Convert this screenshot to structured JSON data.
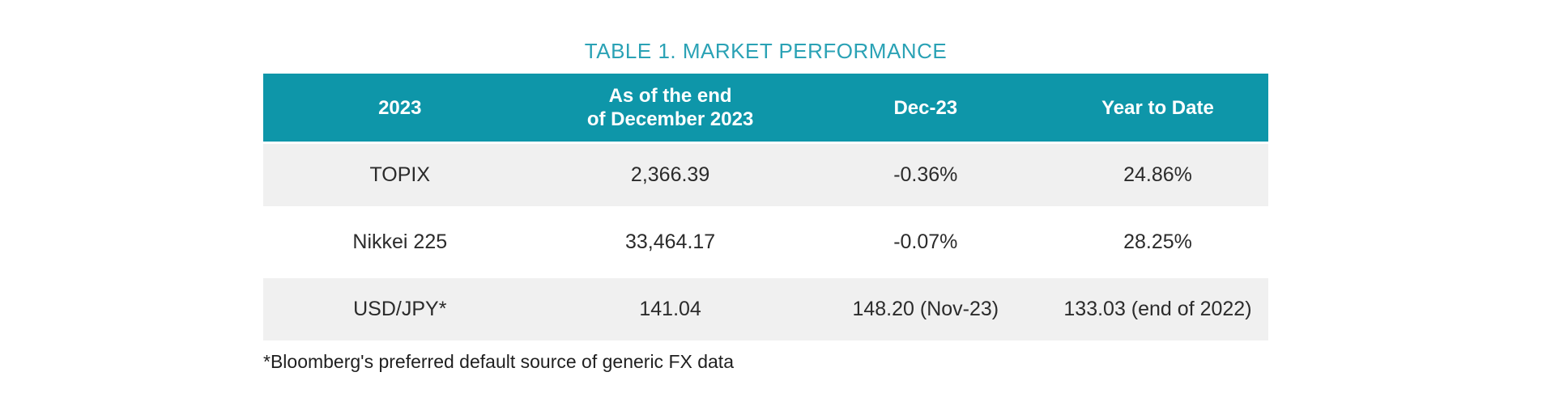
{
  "title": "TABLE 1. MARKET PERFORMANCE",
  "colors": {
    "header_bg": "#0e96a9",
    "header_text": "#ffffff",
    "title_text": "#2aa2b5",
    "row_bg": "#ffffff",
    "row_alt_bg": "#f0f0f0",
    "body_text": "#2b2b2b"
  },
  "table": {
    "headers": [
      {
        "line1": "2023",
        "line2": ""
      },
      {
        "line1": "As of the end",
        "line2": "of December 2023"
      },
      {
        "line1": "Dec-23",
        "line2": ""
      },
      {
        "line1": "Year to Date",
        "line2": ""
      }
    ],
    "rows": [
      [
        "TOPIX",
        "2,366.39",
        "-0.36%",
        "24.86%"
      ],
      [
        "Nikkei 225",
        "33,464.17",
        "-0.07%",
        "28.25%"
      ],
      [
        "USD/JPY*",
        "141.04",
        "148.20 (Nov-23)",
        "133.03 (end of 2022)"
      ]
    ]
  },
  "footnote": "*Bloomberg's preferred default source of generic FX data"
}
